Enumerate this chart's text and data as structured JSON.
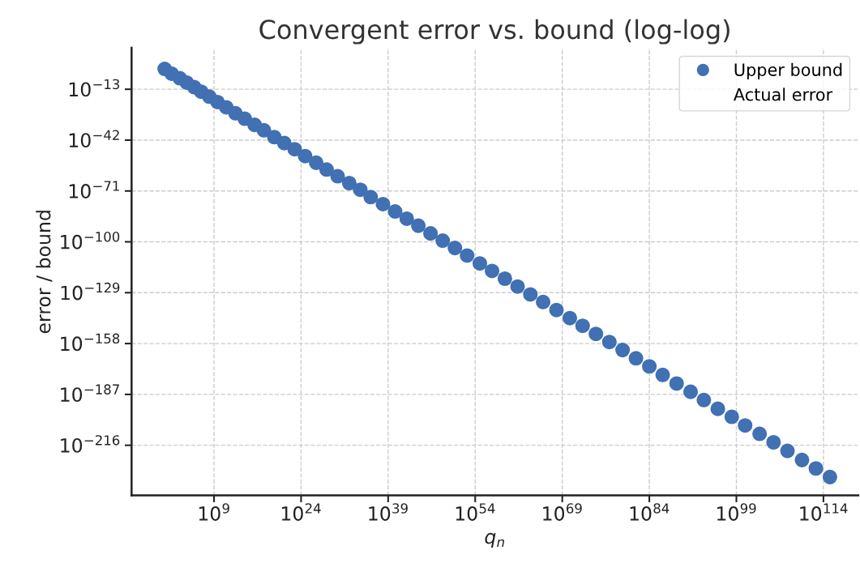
{
  "chart_data": {
    "type": "scatter",
    "title": "Convergent error vs. bound (log-log)",
    "xlabel": "q$_{n}$",
    "ylabel": "error / bound",
    "x": [
      3.2,
      50.0,
      1300.0,
      20000.0,
      400000.0,
      6300000.0,
      160000000.0,
      4000000000.0,
      130000000000.0,
      5000000000000.0,
      200000000000000.0,
      1e+16,
      4e+17,
      2.5e+19,
      1.3e+21,
      7.9e+22,
      5e+24,
      4e+26,
      2.5e+28,
      2e+30,
      2e+32,
      1.6e+34,
      1e+36,
      1.3e+38,
      1.6e+40,
      1.6e+42,
      1.6e+44,
      2e+46,
      2.5e+48,
      3.2e+50,
      4e+52,
      6.3e+54,
      7.9e+56,
      1.3e+59,
      2e+61,
      3.2e+63,
      5e+65,
      1e+68,
      2e+70,
      3.2e+72,
      6.3e+74,
      1.3e+77,
      2.5e+79,
      5e+81,
      1e+84,
      2e+86,
      5e+88,
      1.3e+91,
      2.5e+93,
      6.3e+95,
      1.6e+98,
      3.2e+100,
      1e+103,
      2.5e+105,
      6.3e+107,
      2e+110,
      5e+112,
      1.3e+115
    ],
    "series": [
      {
        "name": "Upper bound",
        "color": "#4170b3",
        "marker": "circle",
        "values": [
          0.04,
          7.9e-05,
          2e-07,
          6.3e-10,
          1.6e-12,
          4e-15,
          6.3e-18,
          5e-21,
          5e-24,
          2e-27,
          1.6e-30,
          5e-34,
          4e-37,
          5e-41,
          2e-44,
          6.3e-48,
          7.9e-52,
          1.3e-55,
          1.6e-59,
          2.5e-63,
          3.2e-67,
          5e-71,
          3.2e-75,
          3.2e-79,
          2e-83,
          1.6e-87,
          1.6e-91,
          6.3e-96,
          5e-100,
          3.2e-104,
          1.6e-108,
          5e-113,
          2.5e-117,
          1e-121,
          3.2e-126,
          1e-130,
          5e-135,
          1.3e-139,
          3.2e-144,
          1.3e-148,
          3.2e-153,
          7.9e-158,
          2e-162,
          4e-167,
          1e-171,
          1.3e-176,
          1.6e-181,
          3.2e-186,
          6.3e-191,
          6.3e-196,
          1.6e-200,
          2e-205,
          3.2e-210,
          5e-215,
          6.3e-220,
          4e-225,
          6.3e-230,
          7.9e-235
        ]
      },
      {
        "name": "Actual error",
        "marker": "none",
        "values": [
          null,
          null,
          null,
          null,
          null,
          null,
          null,
          null,
          null,
          null,
          null,
          null,
          null,
          null,
          null,
          null,
          null,
          null,
          null,
          null,
          null,
          null,
          null,
          null,
          null,
          null,
          null,
          null,
          null,
          null,
          null,
          null,
          null,
          null,
          null,
          null,
          null,
          null,
          null,
          null,
          null,
          null,
          null,
          null,
          null,
          null,
          null,
          null,
          null,
          null,
          null,
          null,
          null,
          null,
          null,
          null,
          null,
          null
        ]
      }
    ],
    "log": "xy",
    "xlim": [
      6.3e-06,
      1e+120
    ],
    "ylim": [
      2.5e-245,
      40000000000.0
    ],
    "xticks": [
      {
        "value": 1000000000.0,
        "label": "10$^{9}$"
      },
      {
        "value": 1e+24,
        "label": "10$^{24}$"
      },
      {
        "value": 1e+39,
        "label": "10$^{39}$"
      },
      {
        "value": 1e+54,
        "label": "10$^{54}$"
      },
      {
        "value": 1e+69,
        "label": "10$^{69}$"
      },
      {
        "value": 1e+84,
        "label": "10$^{84}$"
      },
      {
        "value": 1e+99,
        "label": "10$^{99}$"
      },
      {
        "value": 1e+114,
        "label": "10$^{114}$"
      }
    ],
    "yticks": [
      {
        "value": 1e-13,
        "label": "10$^{−13}$"
      },
      {
        "value": 1e-42,
        "label": "10$^{−42}$"
      },
      {
        "value": 1e-71,
        "label": "10$^{−71}$"
      },
      {
        "value": 1e-100,
        "label": "10$^{−100}$"
      },
      {
        "value": 1e-129,
        "label": "10$^{−129}$"
      },
      {
        "value": 1e-158,
        "label": "10$^{−158}$"
      },
      {
        "value": 1e-187,
        "label": "10$^{−187}$"
      },
      {
        "value": 1e-216,
        "label": "10$^{−216}$"
      }
    ],
    "grid": true,
    "legend": "top right"
  }
}
